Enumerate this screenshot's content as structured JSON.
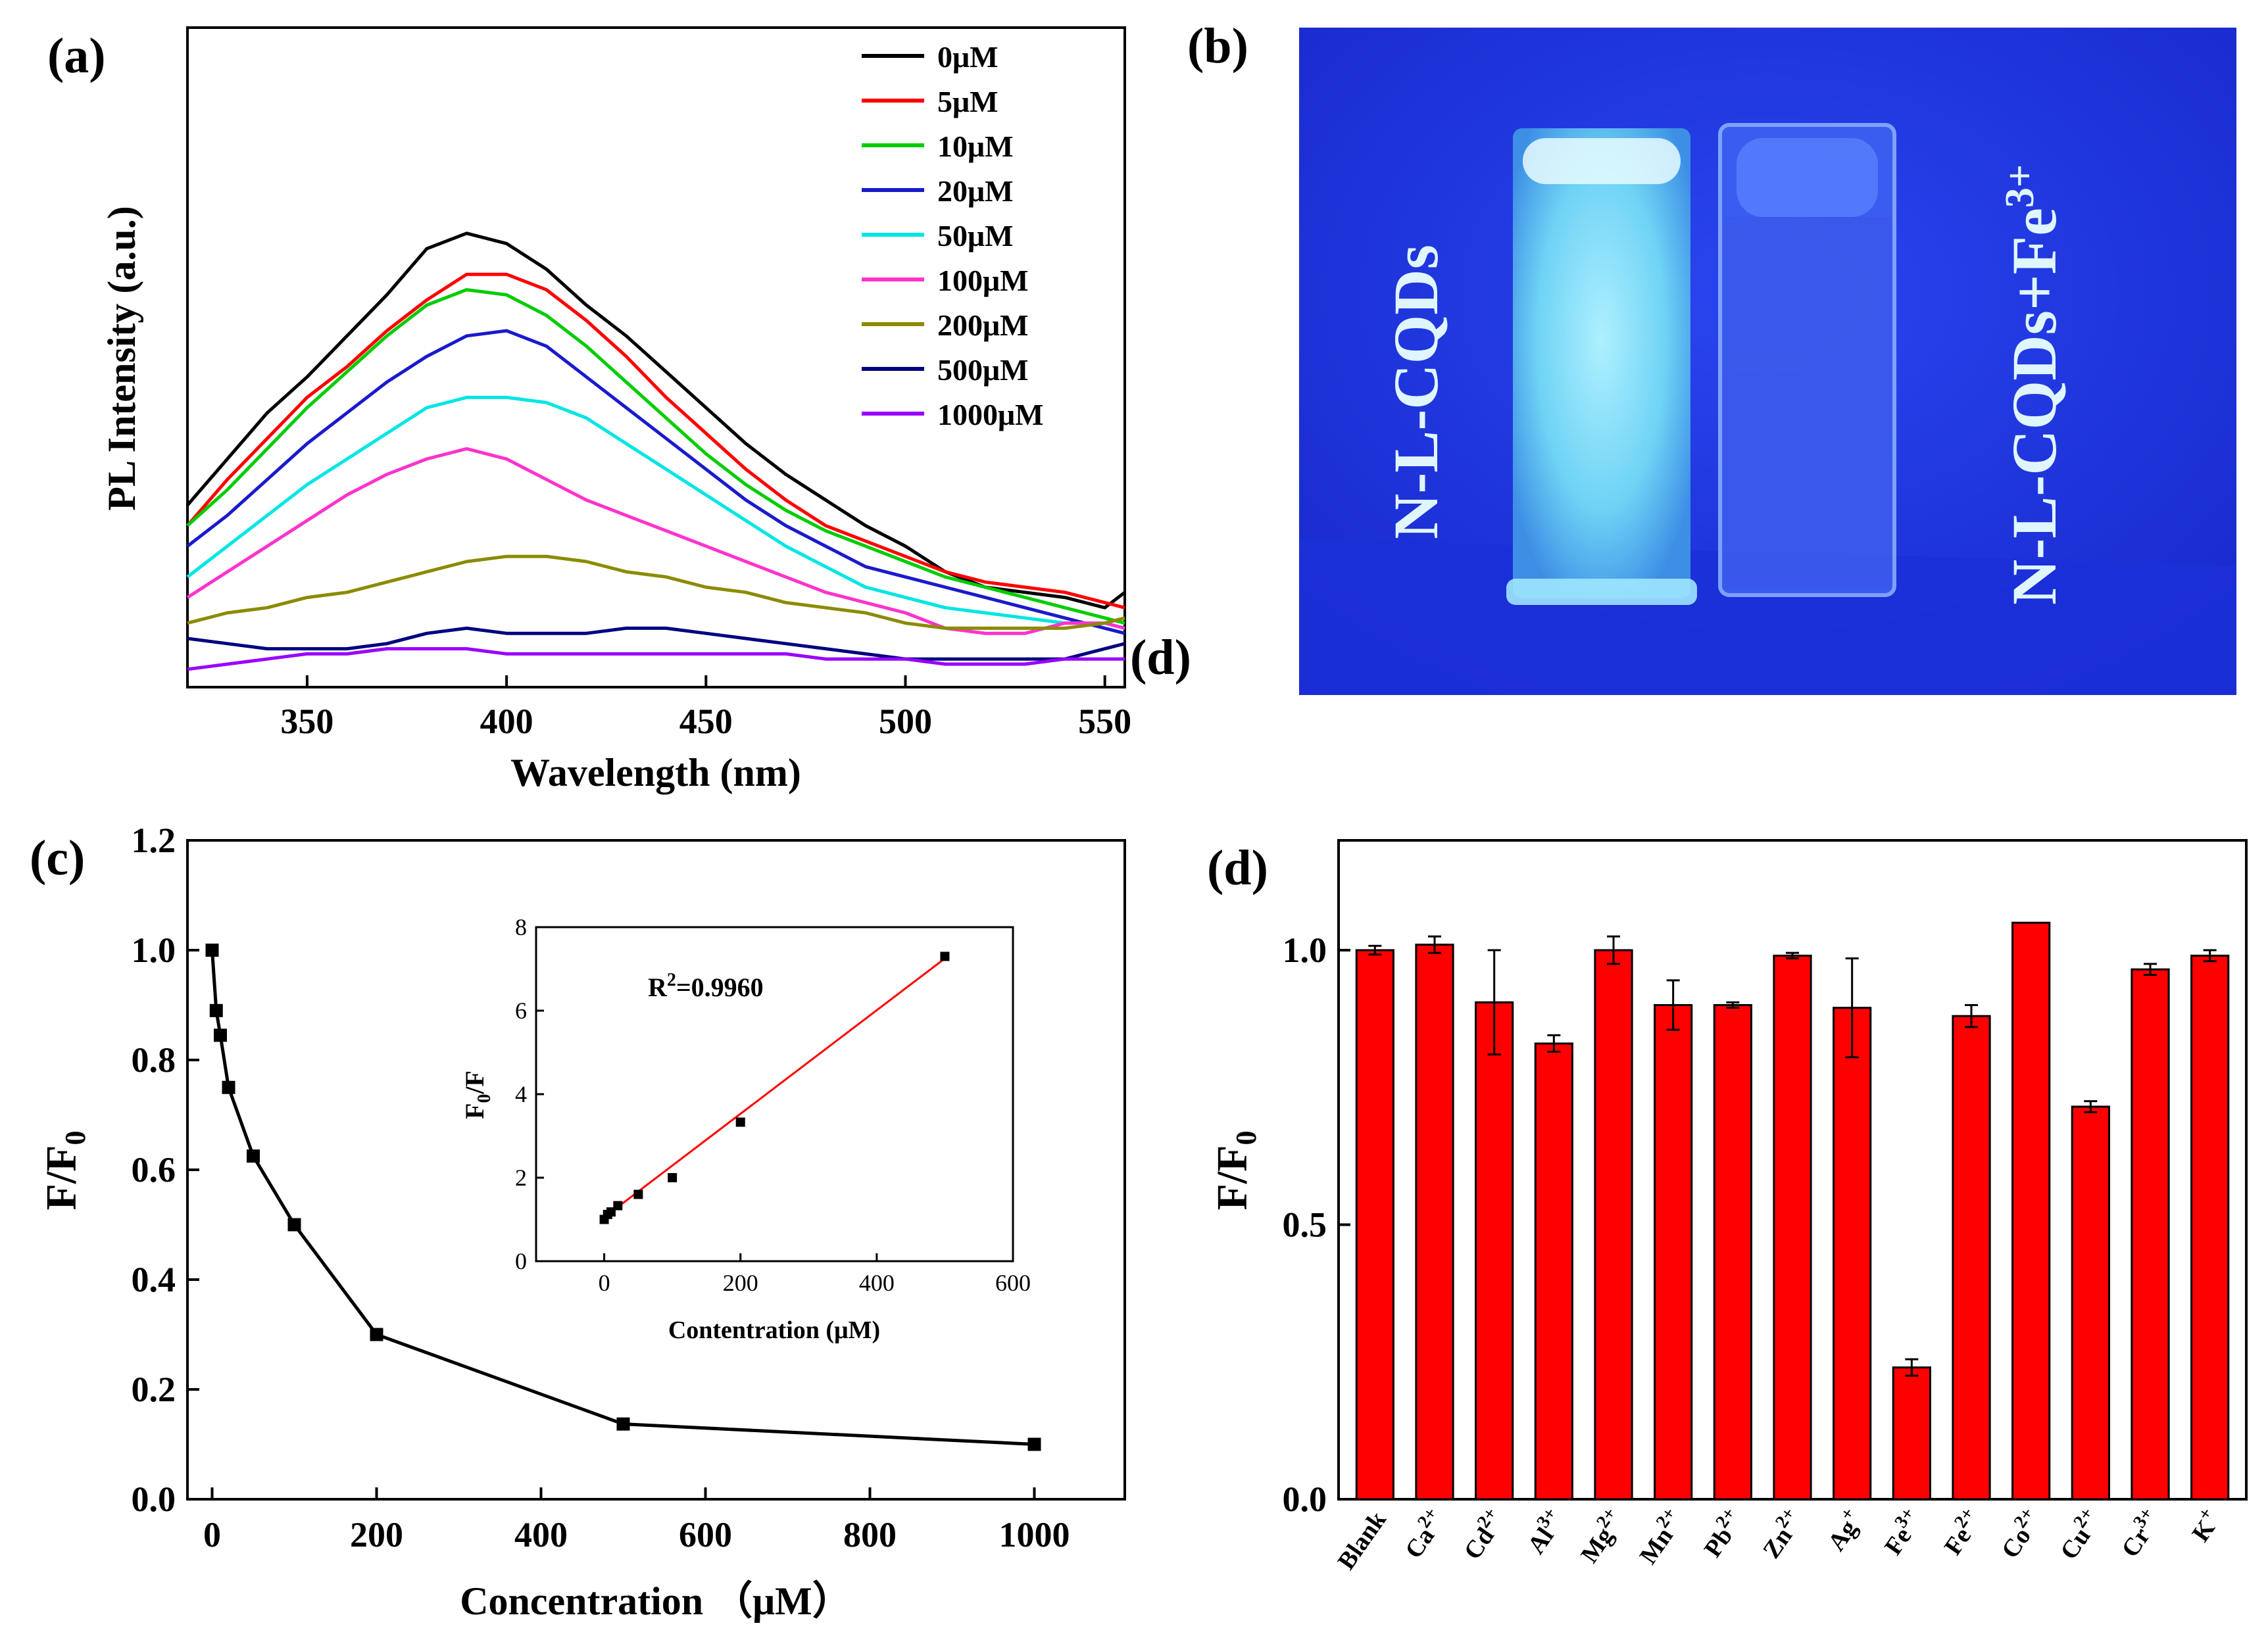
{
  "panels": {
    "a": "(a)",
    "b": "(b)",
    "c": "(c)",
    "d": "(d)",
    "d_stray": "(d)"
  },
  "photo": {
    "label_left": "N-L-CQDs",
    "label_right_base": "N-L-CQDs+Fe",
    "label_right_sup": "3+",
    "colors": {
      "background": "#1a2fe0",
      "glow": "#7fdcff"
    }
  },
  "chart_data": [
    {
      "id": "a",
      "type": "line",
      "title": "",
      "xlabel": "Wavelength (nm)",
      "ylabel": "PL Intensity (a.u.)",
      "xlim": [
        320,
        555
      ],
      "ylim": [
        0,
        100
      ],
      "xticks": [
        350,
        400,
        450,
        500,
        550
      ],
      "y_tick_labels": false,
      "x": [
        320,
        330,
        340,
        350,
        360,
        370,
        380,
        390,
        400,
        410,
        420,
        430,
        440,
        450,
        460,
        470,
        480,
        490,
        500,
        510,
        520,
        530,
        540,
        550,
        555
      ],
      "series": [
        {
          "name": "0μM",
          "color": "#000000",
          "values": [
            31,
            40,
            49,
            56,
            64,
            72,
            81,
            84,
            82,
            77,
            70,
            64,
            57,
            50,
            43,
            37,
            32,
            27,
            23,
            18,
            15,
            14,
            13,
            11,
            14
          ]
        },
        {
          "name": "5μM",
          "color": "#ff0000",
          "values": [
            27,
            36,
            44,
            52,
            58,
            65,
            71,
            76,
            76,
            73,
            67,
            60,
            52,
            45,
            38,
            32,
            27,
            24,
            21,
            18,
            16,
            15,
            14,
            12,
            11
          ]
        },
        {
          "name": "10μM",
          "color": "#00cc00",
          "values": [
            27,
            34,
            42,
            50,
            57,
            64,
            70,
            73,
            72,
            68,
            62,
            55,
            48,
            41,
            35,
            30,
            26,
            23,
            20,
            17,
            15,
            13,
            11,
            9,
            8
          ]
        },
        {
          "name": "20μM",
          "color": "#1a1acc",
          "values": [
            23,
            29,
            36,
            43,
            49,
            55,
            60,
            64,
            65,
            62,
            56,
            50,
            44,
            38,
            32,
            27,
            23,
            19,
            17,
            15,
            13,
            11,
            9,
            7,
            6
          ]
        },
        {
          "name": "50μM",
          "color": "#00e5e5",
          "values": [
            17,
            23,
            29,
            35,
            40,
            45,
            50,
            52,
            52,
            51,
            48,
            43,
            38,
            33,
            28,
            23,
            19,
            15,
            13,
            11,
            10,
            9,
            8,
            8,
            9
          ]
        },
        {
          "name": "100μM",
          "color": "#ff33cc",
          "values": [
            13,
            18,
            23,
            28,
            33,
            37,
            40,
            42,
            40,
            36,
            32,
            29,
            26,
            23,
            20,
            17,
            14,
            12,
            10,
            7,
            6,
            6,
            8,
            8,
            7
          ]
        },
        {
          "name": "200μM",
          "color": "#8b8b00",
          "values": [
            8,
            10,
            11,
            13,
            14,
            16,
            18,
            20,
            21,
            21,
            20,
            18,
            17,
            15,
            14,
            12,
            11,
            10,
            8,
            7,
            7,
            7,
            7,
            8,
            9
          ]
        },
        {
          "name": "500μM",
          "color": "#000080",
          "values": [
            5,
            4,
            3,
            3,
            3,
            4,
            6,
            7,
            6,
            6,
            6,
            7,
            7,
            6,
            5,
            4,
            3,
            2,
            1,
            1,
            1,
            1,
            1,
            3,
            4
          ]
        },
        {
          "name": "1000μM",
          "color": "#9900ff",
          "values": [
            -1,
            0,
            1,
            2,
            2,
            3,
            3,
            3,
            2,
            2,
            2,
            2,
            2,
            2,
            2,
            2,
            1,
            1,
            1,
            0,
            0,
            0,
            1,
            1,
            1
          ]
        }
      ]
    },
    {
      "id": "c",
      "type": "line",
      "title": "",
      "xlabel": "Concentration （μM）",
      "ylabel_base": "F/F",
      "ylabel_sub": "0",
      "xlim": [
        -30,
        1110
      ],
      "ylim": [
        0,
        1.2
      ],
      "xticks": [
        0,
        200,
        400,
        600,
        800,
        1000
      ],
      "yticks": [
        0.0,
        0.2,
        0.4,
        0.6,
        0.8,
        1.0,
        1.2
      ],
      "x": [
        0,
        5,
        10,
        20,
        50,
        100,
        200,
        500,
        1000
      ],
      "values": [
        1.0,
        0.89,
        0.845,
        0.75,
        0.625,
        0.5,
        0.3,
        0.137,
        0.1
      ],
      "inset": {
        "type": "scatter",
        "xlabel": "Contentration (μM)",
        "ylabel_base": "F",
        "ylabel_sub": "0",
        "ylabel_tail": "/F",
        "annotation_base": "R",
        "annotation_sup": "2",
        "annotation_tail": "=0.9960",
        "xlim": [
          -100,
          600
        ],
        "ylim": [
          0,
          8
        ],
        "xticks": [
          0,
          200,
          400,
          600
        ],
        "yticks": [
          0,
          2,
          4,
          6,
          8
        ],
        "x": [
          0,
          5,
          10,
          20,
          50,
          100,
          200,
          500
        ],
        "values": [
          1.0,
          1.12,
          1.18,
          1.33,
          1.6,
          2.0,
          3.33,
          7.3
        ],
        "fit": {
          "x": [
            0,
            500
          ],
          "y": [
            1.05,
            7.25
          ],
          "color": "#ff0000"
        }
      }
    },
    {
      "id": "d",
      "type": "bar",
      "title": "",
      "xlabel": "",
      "ylabel_base": "F/F",
      "ylabel_sub": "0",
      "ylim": [
        0,
        1.2
      ],
      "yticks": [
        0.0,
        0.5,
        1.0
      ],
      "bar_color": "#ff0000",
      "categories": [
        {
          "base": "Blank",
          "sup": ""
        },
        {
          "base": "Ca",
          "sup": "2+"
        },
        {
          "base": "Cd",
          "sup": "2+"
        },
        {
          "base": "Al",
          "sup": "3+"
        },
        {
          "base": "Mg",
          "sup": "2+"
        },
        {
          "base": "Mn",
          "sup": "2+"
        },
        {
          "base": "Pb",
          "sup": "2+"
        },
        {
          "base": "Zn",
          "sup": "2+"
        },
        {
          "base": "Ag",
          "sup": "+"
        },
        {
          "base": "Fe",
          "sup": "3+"
        },
        {
          "base": "Fe",
          "sup": "2+"
        },
        {
          "base": "Co",
          "sup": "2+"
        },
        {
          "base": "Cu",
          "sup": "2+"
        },
        {
          "base": "Cr",
          "sup": "3+"
        },
        {
          "base": "K",
          "sup": "+"
        }
      ],
      "values": [
        1.0,
        1.01,
        0.905,
        0.83,
        1.0,
        0.9,
        0.9,
        0.99,
        0.895,
        0.24,
        0.88,
        1.05,
        0.715,
        0.965,
        0.99
      ],
      "errors": [
        0.008,
        0.015,
        0.095,
        0.015,
        0.025,
        0.045,
        0.005,
        0.005,
        0.09,
        0.015,
        0.02,
        0.0,
        0.01,
        0.01,
        0.01
      ]
    }
  ]
}
